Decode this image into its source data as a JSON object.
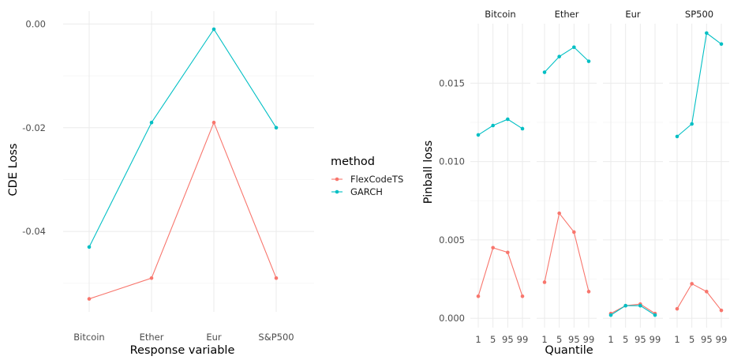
{
  "colors": {
    "FlexCodeTS": "#F8766D",
    "GARCH": "#00BFC4",
    "grid": "#ebebeb"
  },
  "legend": {
    "title": "method",
    "items": [
      {
        "name": "FlexCodeTS",
        "color": "#F8766D"
      },
      {
        "name": "GARCH",
        "color": "#00BFC4"
      }
    ]
  },
  "chart_data": [
    {
      "type": "line",
      "title": "",
      "xlabel": "Response variable",
      "ylabel": "CDE Loss",
      "categories": [
        "Bitcoin",
        "Ether",
        "Eur",
        "S&P500"
      ],
      "y_ticks": [
        0.0,
        -0.02,
        -0.04
      ],
      "y_tick_labels": [
        "0.00",
        "-0.02",
        "-0.04"
      ],
      "ylim": [
        -0.0555,
        0.0025
      ],
      "grid": true,
      "legend_position": "right",
      "series": [
        {
          "name": "FlexCodeTS",
          "values": [
            -0.053,
            -0.049,
            -0.019,
            -0.049
          ]
        },
        {
          "name": "GARCH",
          "values": [
            -0.043,
            -0.019,
            -0.001,
            -0.02
          ]
        }
      ]
    },
    {
      "type": "line",
      "title": "",
      "xlabel": "Quantile",
      "ylabel": "Pinball loss",
      "panels": [
        "Bitcoin",
        "Ether",
        "Eur",
        "SP500"
      ],
      "x": [
        "1",
        "5",
        "95",
        "99"
      ],
      "y_ticks": [
        0.0,
        0.005,
        0.01,
        0.015
      ],
      "y_tick_labels": [
        "0.000",
        "0.005",
        "0.010",
        "0.015"
      ],
      "ylim": [
        -0.0006,
        0.0188
      ],
      "grid": true,
      "series": [
        {
          "name": "FlexCodeTS",
          "values": {
            "Bitcoin": [
              0.0014,
              0.0045,
              0.0042,
              0.0014
            ],
            "Ether": [
              0.0023,
              0.0067,
              0.0055,
              0.0017
            ],
            "Eur": [
              0.0003,
              0.0008,
              0.0009,
              0.0003
            ],
            "SP500": [
              0.0006,
              0.0022,
              0.0017,
              0.0005
            ]
          }
        },
        {
          "name": "GARCH",
          "values": {
            "Bitcoin": [
              0.0117,
              0.0123,
              0.0127,
              0.0121
            ],
            "Ether": [
              0.0157,
              0.0167,
              0.0173,
              0.0164
            ],
            "Eur": [
              0.0002,
              0.0008,
              0.0008,
              0.0002
            ],
            "SP500": [
              0.0116,
              0.0124,
              0.0182,
              0.0175
            ]
          }
        }
      ]
    }
  ]
}
